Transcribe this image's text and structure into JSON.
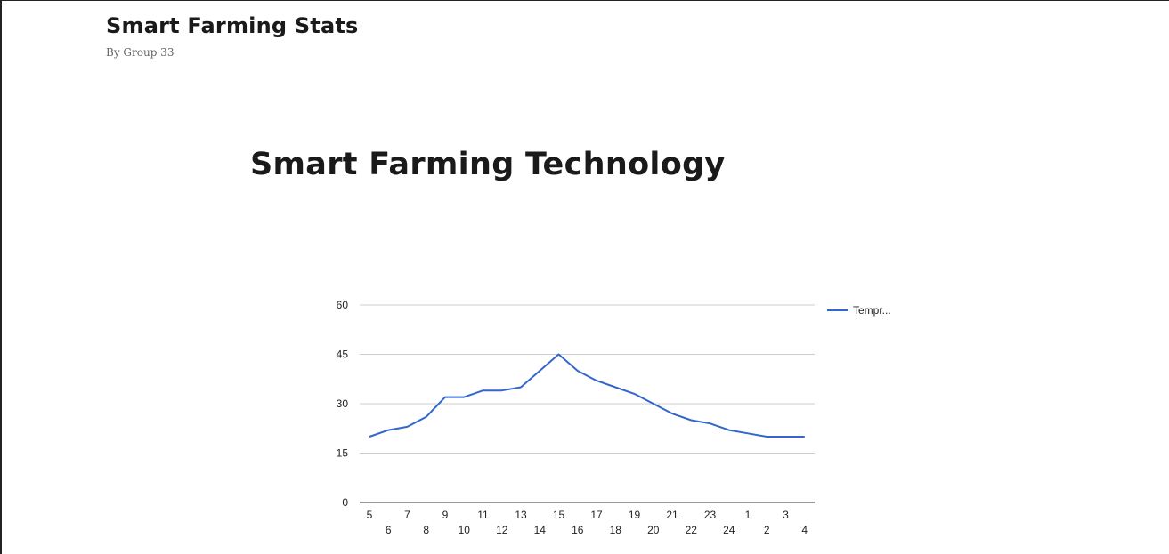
{
  "header": {
    "title": "Smart Farming Stats",
    "subtitle": "By Group 33"
  },
  "main": {
    "heading": "Smart Farming Technology"
  },
  "chart_data": {
    "type": "line",
    "categories": [
      "5",
      "6",
      "7",
      "8",
      "9",
      "10",
      "11",
      "12",
      "13",
      "14",
      "15",
      "16",
      "17",
      "18",
      "19",
      "20",
      "21",
      "22",
      "23",
      "24",
      "1",
      "2",
      "3",
      "4"
    ],
    "series": [
      {
        "name": "Tempr...",
        "color": "#3366cc",
        "values": [
          20,
          22,
          23,
          26,
          32,
          32,
          34,
          34,
          35,
          40,
          45,
          40,
          37,
          35,
          33,
          30,
          27,
          25,
          24,
          22,
          21,
          20,
          20,
          20
        ]
      }
    ],
    "y_ticks": [
      "0",
      "15",
      "30",
      "45",
      "60"
    ],
    "ylim": [
      0,
      60
    ],
    "grid": true,
    "legend_position": "right"
  }
}
